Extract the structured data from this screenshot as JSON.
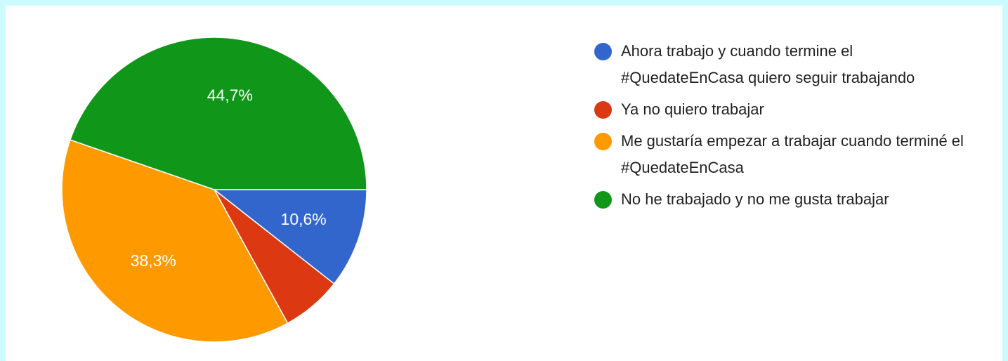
{
  "chart_data": {
    "type": "pie",
    "categories": [
      "Ahora trabajo y cuando termine el #QuedateEnCasa quiero seguir trabajando",
      "Ya no quiero trabajar",
      "Me gustaría empezar a trabajar cuando terminé el #QuedateEnCasa",
      "No he trabajado y no me gusta trabajar"
    ],
    "values": [
      10.6,
      6.4,
      38.3,
      44.7
    ],
    "value_labels": [
      "10,6%",
      null,
      "38,3%",
      "44,7%"
    ],
    "colors": [
      "#3366cc",
      "#dc3912",
      "#ff9900",
      "#109618"
    ],
    "legend": "right"
  }
}
